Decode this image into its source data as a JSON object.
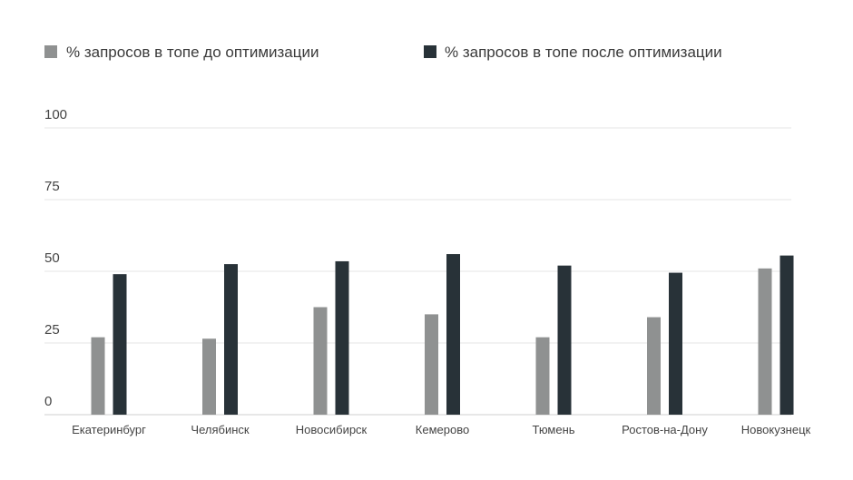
{
  "colors": {
    "before": "#8f9191",
    "after": "#283238",
    "grid": "#e6e6e6"
  },
  "chart_data": {
    "type": "bar",
    "categories": [
      "Екатеринбург",
      "Челябинск",
      "Новосибирск",
      "Кемерово",
      "Тюмень",
      "Ростов-на-Дону",
      "Новокузнецк"
    ],
    "series": [
      {
        "name": "% запросов в топе до оптимизации",
        "values": [
          27,
          26.5,
          37.5,
          35,
          27,
          34,
          51
        ]
      },
      {
        "name": "% запросов в топе после оптимизации",
        "values": [
          49,
          52.5,
          53.5,
          56,
          52,
          49.5,
          55.5
        ]
      }
    ],
    "yticks": [
      0,
      25,
      50,
      75,
      100
    ],
    "ylim": [
      0,
      100
    ],
    "grid": true,
    "legend": "top-left"
  }
}
